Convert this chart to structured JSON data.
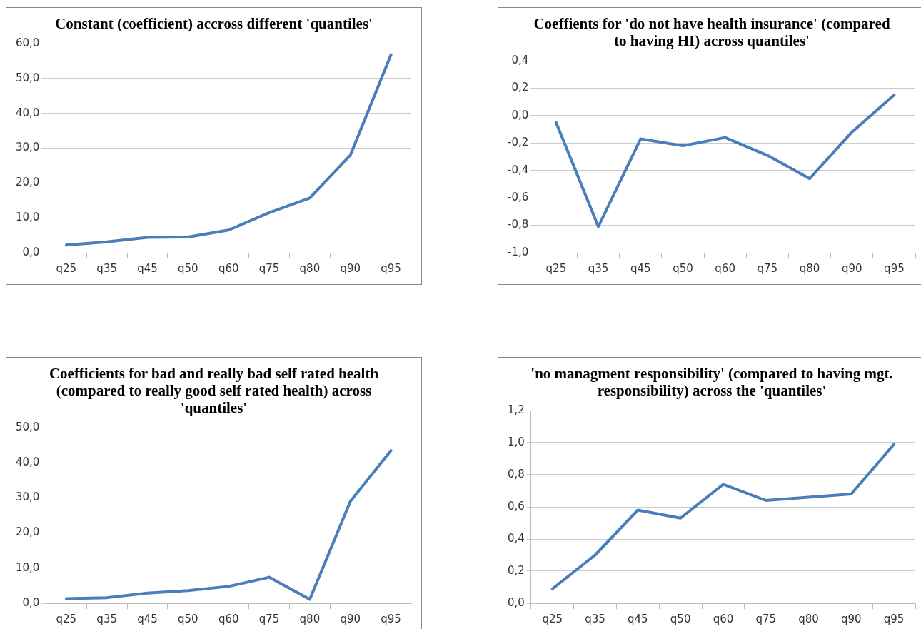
{
  "chart_data": [
    {
      "type": "line",
      "title": "Constant (coefficient) accross different 'quantiles'",
      "categories": [
        "q25",
        "q35",
        "q45",
        "q50",
        "q60",
        "q75",
        "q80",
        "q90",
        "q95"
      ],
      "series": [
        {
          "color": "#4a7ebb",
          "values": [
            2.2,
            3.1,
            4.4,
            4.5,
            6.5,
            11.5,
            15.7,
            28.0,
            56.8
          ]
        }
      ],
      "ylim": [
        0,
        60
      ],
      "yticks": [
        {
          "value": 0,
          "label": "0,0"
        },
        {
          "value": 10,
          "label": "10,0"
        },
        {
          "value": 20,
          "label": "20,0"
        },
        {
          "value": 30,
          "label": "30,0"
        },
        {
          "value": 40,
          "label": "40,0"
        },
        {
          "value": 50,
          "label": "50,0"
        },
        {
          "value": 60,
          "label": "60,0"
        }
      ],
      "grid": "y",
      "legend": false,
      "marker": "none",
      "line_style": "solid"
    },
    {
      "type": "line",
      "title": "Coeffients for 'do not have health insurance' (compared to having HI) across quantiles'",
      "categories": [
        "q25",
        "q35",
        "q45",
        "q50",
        "q60",
        "q75",
        "q80",
        "q90",
        "q95"
      ],
      "series": [
        {
          "color": "#4a7ebb",
          "values": [
            -0.05,
            -0.81,
            -0.17,
            -0.22,
            -0.16,
            -0.29,
            -0.46,
            -0.12,
            0.15
          ]
        }
      ],
      "ylim": [
        -1,
        0.4
      ],
      "yticks": [
        {
          "value": -1,
          "label": "-1,0"
        },
        {
          "value": -0.8,
          "label": "-0,8"
        },
        {
          "value": -0.6,
          "label": "-0,6"
        },
        {
          "value": -0.4,
          "label": "-0,4"
        },
        {
          "value": -0.2,
          "label": "-0,2"
        },
        {
          "value": 0,
          "label": "0,0"
        },
        {
          "value": 0.2,
          "label": "0,2"
        },
        {
          "value": 0.4,
          "label": "0,4"
        }
      ],
      "grid": "y",
      "legend": false,
      "marker": "none",
      "line_style": "solid"
    },
    {
      "type": "line",
      "title": "Coefficients for bad and really bad self rated health (compared to really good self rated health) across 'quantiles'",
      "categories": [
        "q25",
        "q35",
        "q45",
        "q50",
        "q60",
        "q75",
        "q80",
        "q90",
        "q95"
      ],
      "series": [
        {
          "color": "#4a7ebb",
          "values": [
            1.3,
            1.6,
            2.9,
            3.6,
            4.8,
            7.4,
            1.1,
            29.0,
            43.5
          ]
        }
      ],
      "ylim": [
        0,
        50
      ],
      "yticks": [
        {
          "value": 0,
          "label": "0,0"
        },
        {
          "value": 10,
          "label": "10,0"
        },
        {
          "value": 20,
          "label": "20,0"
        },
        {
          "value": 30,
          "label": "30,0"
        },
        {
          "value": 40,
          "label": "40,0"
        },
        {
          "value": 50,
          "label": "50,0"
        }
      ],
      "grid": "y",
      "legend": false,
      "marker": "none",
      "line_style": "solid"
    },
    {
      "type": "line",
      "title": "'no managment responsibility' (compared to having mgt. responsibility) across the 'quantiles'",
      "categories": [
        "q25",
        "q35",
        "q45",
        "q50",
        "q60",
        "q75",
        "q80",
        "q90",
        "q95"
      ],
      "series": [
        {
          "color": "#4a7ebb",
          "values": [
            0.09,
            0.3,
            0.58,
            0.53,
            0.74,
            0.64,
            0.66,
            0.68,
            0.99
          ]
        }
      ],
      "ylim": [
        0,
        1.2
      ],
      "yticks": [
        {
          "value": 0,
          "label": "0,0"
        },
        {
          "value": 0.2,
          "label": "0,2"
        },
        {
          "value": 0.4,
          "label": "0,4"
        },
        {
          "value": 0.6,
          "label": "0,6"
        },
        {
          "value": 0.8,
          "label": "0,8"
        },
        {
          "value": 1,
          "label": "1,0"
        },
        {
          "value": 1.2,
          "label": "1,2"
        }
      ],
      "grid": "y",
      "legend": false,
      "marker": "none",
      "line_style": "solid"
    }
  ]
}
